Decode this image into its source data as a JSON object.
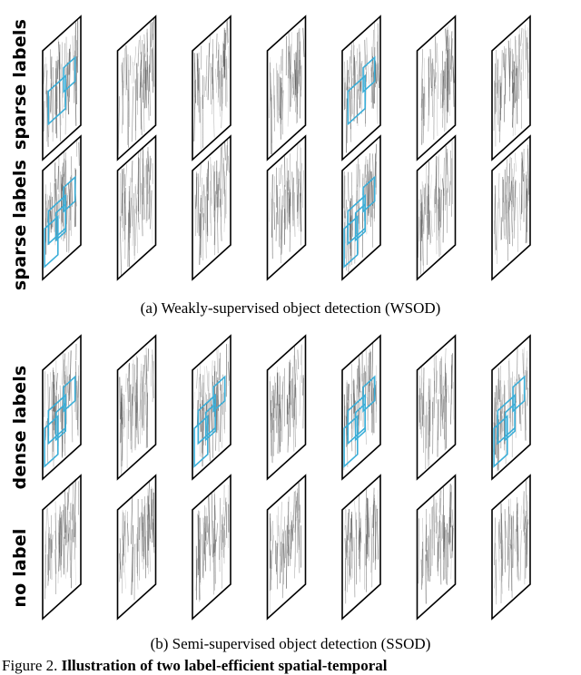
{
  "panel_a": {
    "caption": "(a) Weakly-supervised object detection (WSOD)",
    "rows": [
      {
        "label": "sparse labels",
        "boxed_frames": [
          0,
          4
        ]
      },
      {
        "label": "sparse labels",
        "boxed_frames": [
          0,
          4
        ]
      }
    ]
  },
  "panel_b": {
    "caption": "(b) Semi-supervised object detection (SSOD)",
    "rows": [
      {
        "label": "dense labels",
        "boxed_frames": [
          0,
          2,
          4,
          6
        ]
      },
      {
        "label": "no label",
        "boxed_frames": []
      }
    ]
  },
  "figure_caption": {
    "prefix": "Figure 2.",
    "bold_text": "Illustration of two label-efficient spatial-temporal"
  },
  "frames_per_row": 7,
  "colors": {
    "box": "#3aaed8",
    "frame": "#000000",
    "texture": "#555555"
  }
}
